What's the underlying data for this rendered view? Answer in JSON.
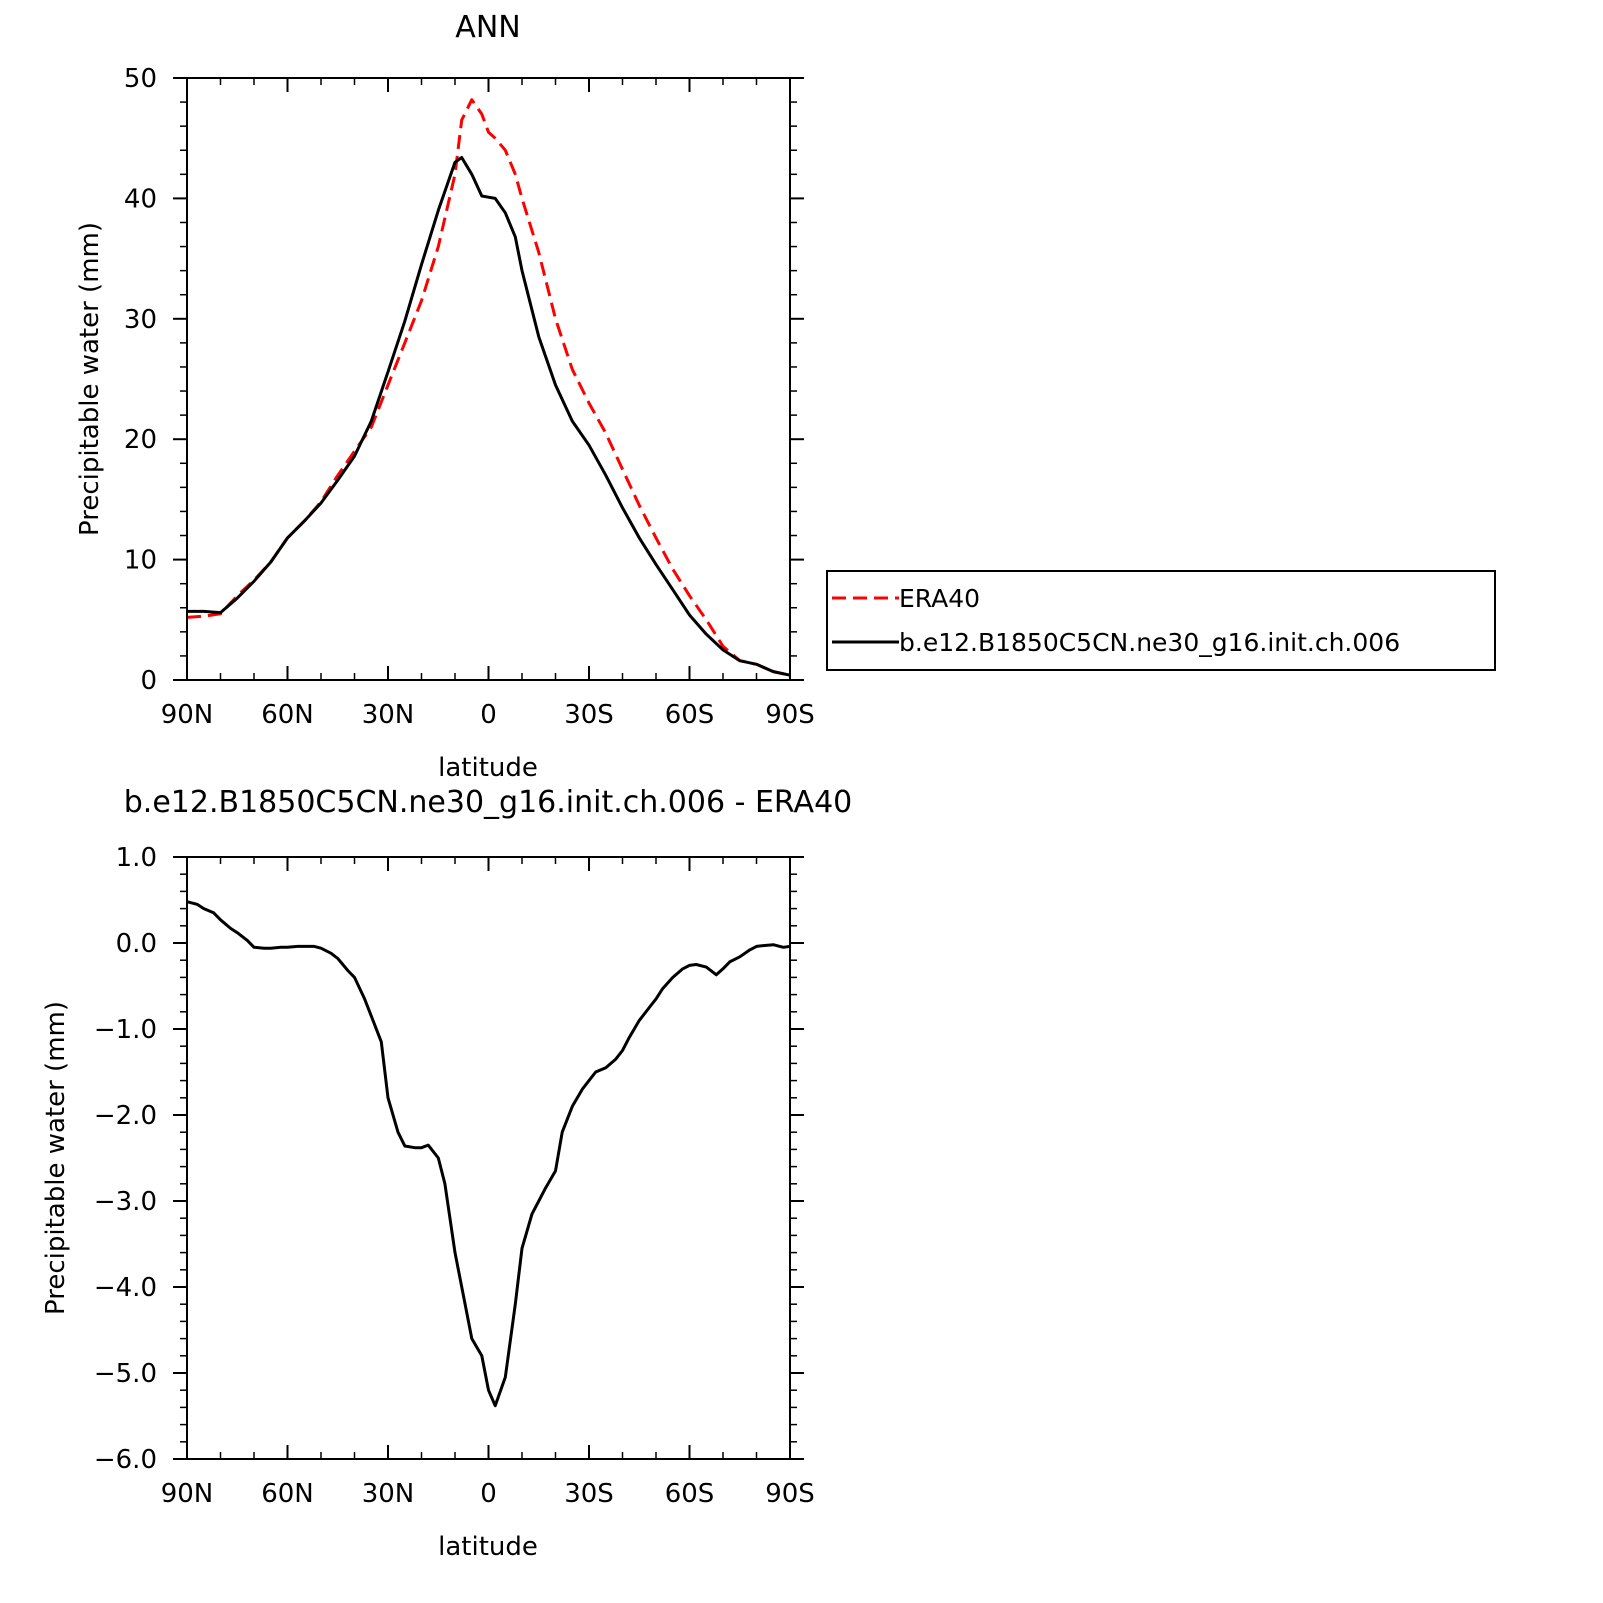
{
  "chart_data": [
    {
      "type": "line",
      "title": "ANN",
      "xlabel": "latitude",
      "ylabel": "Precipitable water (mm)",
      "xlim": [
        90,
        -90
      ],
      "ylim": [
        0,
        50
      ],
      "x_tick_values": [
        90,
        60,
        30,
        0,
        -30,
        -60,
        -90
      ],
      "x_tick_labels": [
        "90N",
        "60N",
        "30N",
        "0",
        "30S",
        "60S",
        "90S"
      ],
      "y_tick_values": [
        0,
        10,
        20,
        30,
        40,
        50
      ],
      "y_tick_labels": [
        "0",
        "10",
        "20",
        "30",
        "40",
        "50"
      ],
      "legend_placement": "right",
      "legend": [
        "ERA40",
        "b.e12.B1850C5CN.ne30_g16.init.ch.006"
      ],
      "series": [
        {
          "name": "ERA40",
          "color": "#ff0000",
          "dash": "dashed",
          "x": [
            90,
            85,
            80,
            75,
            70,
            65,
            60,
            55,
            50,
            45,
            40,
            35,
            30,
            25,
            20,
            15,
            10,
            8,
            5,
            2,
            0,
            -2,
            -5,
            -8,
            -10,
            -15,
            -20,
            -25,
            -30,
            -35,
            -40,
            -45,
            -50,
            -55,
            -60,
            -65,
            -70,
            -75,
            -80,
            -85,
            -90
          ],
          "y": [
            5.2,
            5.3,
            5.5,
            7.0,
            8.3,
            9.8,
            11.8,
            13.2,
            14.8,
            17.0,
            19.0,
            21.0,
            24.5,
            28.0,
            31.5,
            36.0,
            42.0,
            46.5,
            48.2,
            47.0,
            45.5,
            45.0,
            44.0,
            42.0,
            40.0,
            35.5,
            30.0,
            25.8,
            23.0,
            20.5,
            17.5,
            14.5,
            11.8,
            9.2,
            7.0,
            5.0,
            2.8,
            1.6,
            1.3,
            0.7,
            0.4
          ]
        },
        {
          "name": "b.e12.B1850C5CN.ne30_g16.init.ch.006",
          "color": "#000000",
          "dash": "solid",
          "x": [
            90,
            85,
            80,
            75,
            70,
            65,
            60,
            55,
            50,
            45,
            40,
            35,
            30,
            25,
            20,
            15,
            10,
            8,
            5,
            2,
            0,
            -2,
            -5,
            -8,
            -10,
            -15,
            -20,
            -25,
            -30,
            -35,
            -40,
            -45,
            -50,
            -55,
            -60,
            -65,
            -70,
            -75,
            -80,
            -85,
            -90
          ],
          "y": [
            5.7,
            5.7,
            5.6,
            6.8,
            8.2,
            9.8,
            11.8,
            13.2,
            14.7,
            16.6,
            18.6,
            21.5,
            25.6,
            29.8,
            34.5,
            39.0,
            43.0,
            43.4,
            42.0,
            40.2,
            40.1,
            40.0,
            38.8,
            36.8,
            34.0,
            28.5,
            24.5,
            21.5,
            19.5,
            17.0,
            14.3,
            11.8,
            9.6,
            7.5,
            5.4,
            3.8,
            2.5,
            1.6,
            1.3,
            0.7,
            0.4
          ]
        }
      ]
    },
    {
      "type": "line",
      "title": "b.e12.B1850C5CN.ne30_g16.init.ch.006 - ERA40",
      "xlabel": "latitude",
      "ylabel": "Precipitable water (mm)",
      "xlim": [
        90,
        -90
      ],
      "ylim": [
        -6.0,
        1.0
      ],
      "x_tick_values": [
        90,
        60,
        30,
        0,
        -30,
        -60,
        -90
      ],
      "x_tick_labels": [
        "90N",
        "60N",
        "30N",
        "0",
        "30S",
        "60S",
        "90S"
      ],
      "y_tick_values": [
        1,
        0,
        -1,
        -2,
        -3,
        -4,
        -5,
        -6
      ],
      "y_tick_labels": [
        "1.0",
        "0.0",
        "−1.0",
        "−2.0",
        "−3.0",
        "−4.0",
        "−5.0",
        "−6.0"
      ],
      "series": [
        {
          "color": "#000000",
          "dash": "solid",
          "x": [
            90,
            87,
            85,
            82,
            80,
            77,
            75,
            72,
            70,
            67,
            65,
            62,
            60,
            57,
            55,
            52,
            50,
            47,
            45,
            42,
            40,
            37,
            35,
            32,
            30,
            27,
            25,
            22,
            20,
            18,
            15,
            13,
            10,
            7,
            5,
            2,
            0,
            -2,
            -5,
            -8,
            -10,
            -13,
            -15,
            -17,
            -20,
            -22,
            -25,
            -28,
            -30,
            -32,
            -35,
            -38,
            -40,
            -42,
            -45,
            -48,
            -50,
            -52,
            -55,
            -58,
            -60,
            -62,
            -65,
            -68,
            -70,
            -72,
            -75,
            -78,
            -80,
            -82,
            -85,
            -88,
            -90
          ],
          "y": [
            0.48,
            0.45,
            0.4,
            0.35,
            0.27,
            0.17,
            0.12,
            0.03,
            -0.05,
            -0.06,
            -0.06,
            -0.05,
            -0.05,
            -0.04,
            -0.04,
            -0.04,
            -0.06,
            -0.12,
            -0.18,
            -0.32,
            -0.4,
            -0.65,
            -0.85,
            -1.15,
            -1.8,
            -2.2,
            -2.36,
            -2.38,
            -2.38,
            -2.35,
            -2.5,
            -2.8,
            -3.6,
            -4.2,
            -4.6,
            -4.8,
            -5.2,
            -5.38,
            -5.05,
            -4.2,
            -3.55,
            -3.15,
            -3.0,
            -2.85,
            -2.65,
            -2.2,
            -1.9,
            -1.7,
            -1.6,
            -1.5,
            -1.45,
            -1.35,
            -1.25,
            -1.1,
            -0.9,
            -0.75,
            -0.65,
            -0.53,
            -0.4,
            -0.3,
            -0.26,
            -0.25,
            -0.28,
            -0.37,
            -0.3,
            -0.22,
            -0.16,
            -0.08,
            -0.04,
            -0.03,
            -0.02,
            -0.05,
            -0.04
          ]
        }
      ]
    }
  ]
}
